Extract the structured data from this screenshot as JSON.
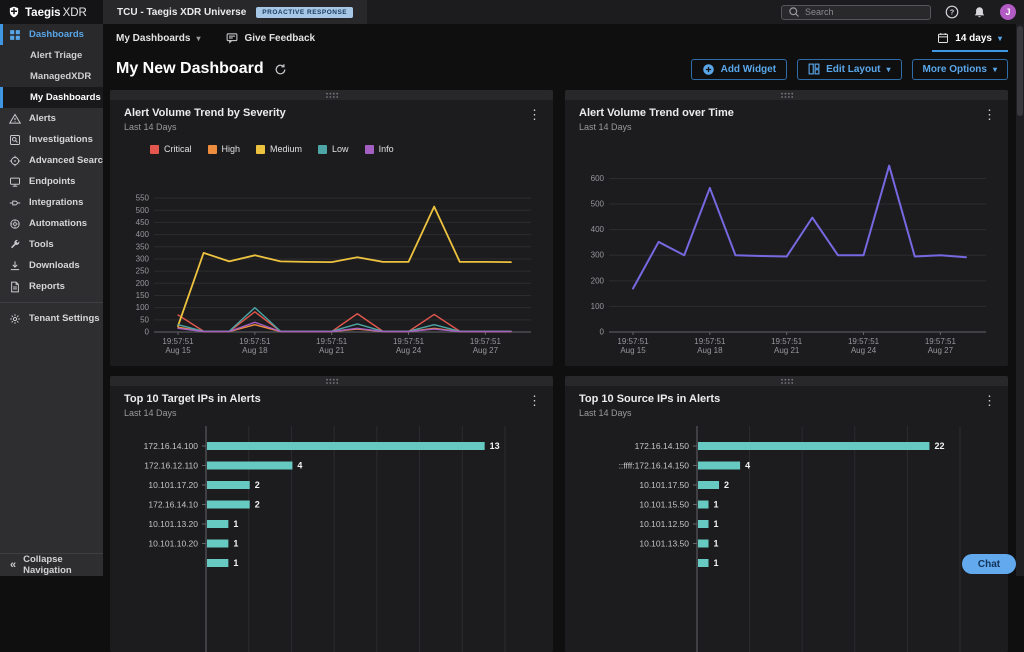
{
  "topbar": {
    "brand_bold": "Taegis",
    "brand_light": "XDR",
    "workspace_title": "TCU - Taegis XDR Universe",
    "badge": "PROACTIVE RESPONSE",
    "search_placeholder": "Search",
    "avatar_initial": "J"
  },
  "sidebar": {
    "items": [
      {
        "label": "Dashboards",
        "icon": "dashboards",
        "active": true,
        "children": [
          {
            "label": "Alert Triage"
          },
          {
            "label": "ManagedXDR"
          },
          {
            "label": "My Dashboards",
            "selected": true
          }
        ]
      },
      {
        "label": "Alerts",
        "icon": "alerts"
      },
      {
        "label": "Investigations",
        "icon": "investigations"
      },
      {
        "label": "Advanced Search",
        "icon": "advanced-search"
      },
      {
        "label": "Endpoints",
        "icon": "endpoints"
      },
      {
        "label": "Integrations",
        "icon": "integrations"
      },
      {
        "label": "Automations",
        "icon": "automations"
      },
      {
        "label": "Tools",
        "icon": "tools"
      },
      {
        "label": "Downloads",
        "icon": "downloads"
      },
      {
        "label": "Reports",
        "icon": "reports"
      },
      {
        "label": "Tenant Settings",
        "icon": "tenant-settings",
        "divider_before": true
      }
    ],
    "collapse_label": "Collapse Navigation"
  },
  "toolbar": {
    "my_dashboards_label": "My Dashboards",
    "give_feedback_label": "Give Feedback",
    "date_range_label": "14 days",
    "page_title": "My New Dashboard",
    "add_widget_label": "Add Widget",
    "edit_layout_label": "Edit Layout",
    "more_options_label": "More Options"
  },
  "chat_label": "Chat",
  "colors": {
    "accent_blue": "#3f97e4",
    "critical": "#e4574e",
    "high": "#ee8d3d",
    "medium": "#edc23e",
    "low": "#4da5a5",
    "info": "#a45fc2",
    "trend": "#7668e0",
    "bar_teal": "#66c9c2"
  },
  "chart_data": [
    {
      "type": "line",
      "title": "Alert Volume Trend by Severity",
      "subtitle": "Last 14 Days",
      "n_points": 14,
      "tick_indices": [
        0,
        3,
        6,
        9,
        12
      ],
      "x_ticks": [
        {
          "time": "19:57:51",
          "date": "Aug 15"
        },
        {
          "time": "19:57:51",
          "date": "Aug 18"
        },
        {
          "time": "19:57:51",
          "date": "Aug 21"
        },
        {
          "time": "19:57:51",
          "date": "Aug 24"
        },
        {
          "time": "19:57:51",
          "date": "Aug 27"
        }
      ],
      "ylim": [
        0,
        575
      ],
      "ytick_max": 550,
      "ytick_step": 50,
      "legend_position": "top",
      "grid": true,
      "series": [
        {
          "name": "Critical",
          "color": "#e4574e",
          "values": [
            70,
            3,
            2,
            83,
            3,
            2,
            2,
            75,
            3,
            2,
            72,
            3,
            2,
            2
          ]
        },
        {
          "name": "High",
          "color": "#ee8d3d",
          "values": [
            20,
            2,
            2,
            30,
            2,
            2,
            2,
            12,
            2,
            2,
            15,
            2,
            2,
            2
          ]
        },
        {
          "name": "Medium",
          "color": "#edc23e",
          "values": [
            25,
            325,
            290,
            315,
            290,
            288,
            287,
            307,
            288,
            288,
            515,
            288,
            288,
            287
          ]
        },
        {
          "name": "Low",
          "color": "#4da5a5",
          "values": [
            30,
            3,
            3,
            100,
            3,
            3,
            3,
            33,
            3,
            3,
            30,
            3,
            3,
            3
          ]
        },
        {
          "name": "Info",
          "color": "#a45fc2",
          "values": [
            15,
            2,
            2,
            40,
            2,
            2,
            2,
            15,
            2,
            2,
            12,
            2,
            2,
            2
          ]
        }
      ]
    },
    {
      "type": "line",
      "title": "Alert Volume Trend over Time",
      "subtitle": "Last 14 Days",
      "n_points": 14,
      "tick_indices": [
        0,
        3,
        6,
        9,
        12
      ],
      "x_ticks": [
        {
          "time": "19:57:51",
          "date": "Aug 15"
        },
        {
          "time": "19:57:51",
          "date": "Aug 18"
        },
        {
          "time": "19:57:51",
          "date": "Aug 21"
        },
        {
          "time": "19:57:51",
          "date": "Aug 24"
        },
        {
          "time": "19:57:51",
          "date": "Aug 27"
        }
      ],
      "ylim": [
        0,
        680
      ],
      "ytick_max": 600,
      "ytick_step": 100,
      "grid": true,
      "series": [
        {
          "name": "Alerts",
          "color": "#7668e0",
          "values": [
            170,
            352,
            300,
            563,
            300,
            297,
            295,
            447,
            300,
            300,
            650,
            295,
            300,
            292
          ]
        }
      ]
    },
    {
      "type": "bar",
      "title": "Top 10 Target IPs in Alerts",
      "subtitle": "Last 14 Days",
      "orientation": "horizontal",
      "categories": [
        "172.16.14.100",
        "172.16.12.110",
        "10.101.17.20",
        "172.16.14.10",
        "10.101.13.20",
        "10.101.10.20",
        ""
      ],
      "values": [
        13,
        4,
        2,
        2,
        1,
        1,
        1
      ],
      "xmax": 14,
      "grid_step": 2,
      "bar_color": "#66c9c2"
    },
    {
      "type": "bar",
      "title": "Top 10 Source IPs in Alerts",
      "subtitle": "Last 14 Days",
      "orientation": "horizontal",
      "categories": [
        "172.16.14.150",
        "::ffff:172.16.14.150",
        "10.101.17.50",
        "10.101.15.50",
        "10.101.12.50",
        "10.101.13.50",
        ""
      ],
      "values": [
        22,
        4,
        2,
        1,
        1,
        1,
        1
      ],
      "xmax": 25,
      "grid_step": 5,
      "bar_color": "#66c9c2"
    }
  ]
}
